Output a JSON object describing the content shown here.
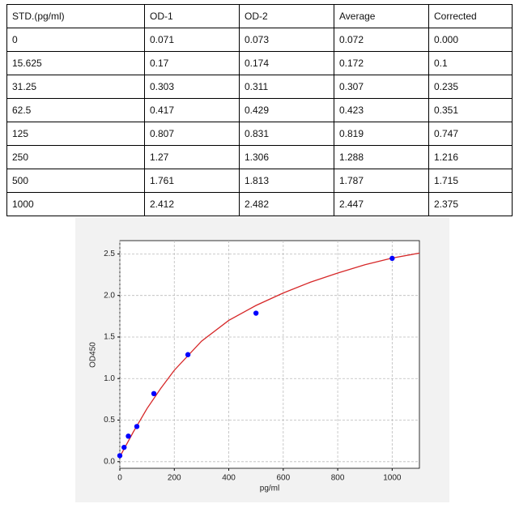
{
  "table": {
    "header": [
      "STD.(pg/ml)",
      "OD-1",
      "OD-2",
      "Average",
      "Corrected"
    ],
    "rows": [
      [
        "0",
        "0.071",
        "0.073",
        "0.072",
        "0.000"
      ],
      [
        "15.625",
        "0.17",
        "0.174",
        "0.172",
        "0.1"
      ],
      [
        "31.25",
        "0.303",
        "0.311",
        "0.307",
        "0.235"
      ],
      [
        "62.5",
        "0.417",
        "0.429",
        "0.423",
        "0.351"
      ],
      [
        "125",
        "0.807",
        "0.831",
        "0.819",
        "0.747"
      ],
      [
        "250",
        "1.27",
        "1.306",
        "1.288",
        "1.216"
      ],
      [
        "500",
        "1.761",
        "1.813",
        "1.787",
        "1.715"
      ],
      [
        "1000",
        "2.412",
        "2.482",
        "2.447",
        "2.375"
      ]
    ]
  },
  "chart_data": {
    "type": "scatter",
    "xlabel": "pg/ml",
    "ylabel": "OD450",
    "xlim": [
      0,
      1100
    ],
    "ylim": [
      -0.08,
      2.66
    ],
    "xticks": [
      0,
      200,
      400,
      600,
      800,
      1000
    ],
    "yticks": [
      {
        "value": 0,
        "label": "0.0"
      },
      0.5,
      {
        "value": 1,
        "label": "1.0"
      },
      1.5,
      {
        "value": 2,
        "label": "2.0"
      },
      2.5
    ],
    "grid": true,
    "color": "#0000ff",
    "x": [
      0,
      15.625,
      31.25,
      62.5,
      125,
      250,
      500,
      1000
    ],
    "values": [
      0.072,
      0.172,
      0.307,
      0.423,
      0.819,
      1.288,
      1.787,
      2.447
    ],
    "curve": {
      "color": "#d62728",
      "x": [
        0,
        25,
        50,
        75,
        100,
        150,
        200,
        300,
        400,
        500,
        600,
        700,
        800,
        900,
        1000,
        1100
      ],
      "values": [
        0.06,
        0.21,
        0.36,
        0.5,
        0.64,
        0.88,
        1.1,
        1.45,
        1.7,
        1.88,
        2.03,
        2.16,
        2.27,
        2.37,
        2.45,
        2.51
      ]
    }
  }
}
